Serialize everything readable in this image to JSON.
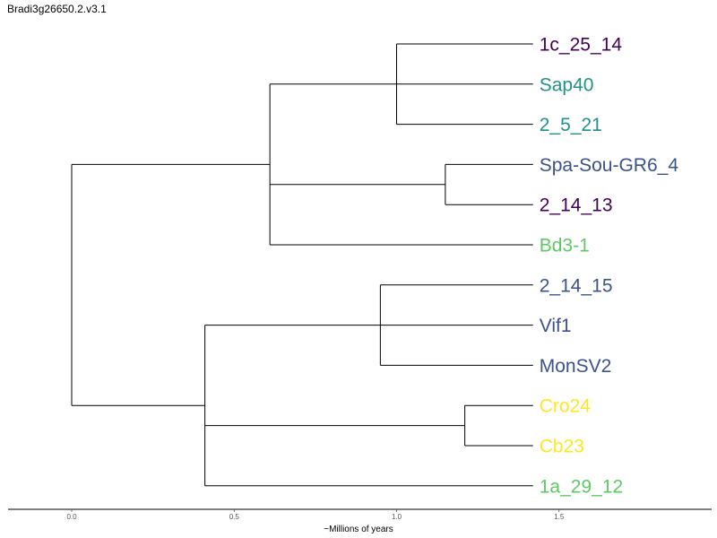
{
  "title": "Bradi3g26650.2.v3.1",
  "chart_data": {
    "type": "dendrogram",
    "title": "Bradi3g26650.2.v3.1",
    "xlabel": "~Millions of years",
    "xlim": [
      -0.2,
      1.96
    ],
    "xticks": [
      {
        "value": 0.0,
        "label": "0.0"
      },
      {
        "value": 0.5,
        "label": "0.5"
      },
      {
        "value": 1.0,
        "label": "1.0"
      },
      {
        "value": 1.5,
        "label": "1.5"
      }
    ],
    "leaf_tip": 1.42,
    "leaves": [
      {
        "label": "1c_25_14",
        "color": "#440154"
      },
      {
        "label": "Sap40",
        "color": "#21918c"
      },
      {
        "label": "2_5_21",
        "color": "#21918c"
      },
      {
        "label": "Spa-Sou-GR6_4",
        "color": "#3b528b"
      },
      {
        "label": "2_14_13",
        "color": "#440154"
      },
      {
        "label": "Bd3-1",
        "color": "#5ec962"
      },
      {
        "label": "2_14_15",
        "color": "#3b528b"
      },
      {
        "label": "Vif1",
        "color": "#3b528b"
      },
      {
        "label": "MonSV2",
        "color": "#3b528b"
      },
      {
        "label": "Cro24",
        "color": "#fde725"
      },
      {
        "label": "Cb23",
        "color": "#fde725"
      },
      {
        "label": "1a_29_12",
        "color": "#5ec962"
      }
    ],
    "tree": {
      "x": 0.0,
      "children": [
        {
          "x": 0.61,
          "children": [
            {
              "x": 1.0,
              "children": [
                {
                  "leaf": 0
                },
                {
                  "leaf": 1
                },
                {
                  "leaf": 2
                }
              ]
            },
            {
              "x": 1.15,
              "children": [
                {
                  "leaf": 3
                },
                {
                  "leaf": 4
                }
              ]
            },
            {
              "leaf": 5
            }
          ]
        },
        {
          "x": 0.41,
          "children": [
            {
              "x": 0.95,
              "children": [
                {
                  "leaf": 6
                },
                {
                  "leaf": 7
                },
                {
                  "leaf": 8
                }
              ]
            },
            {
              "x": 1.21,
              "children": [
                {
                  "leaf": 9
                },
                {
                  "leaf": 10
                }
              ]
            },
            {
              "leaf": 11
            }
          ]
        }
      ]
    }
  }
}
